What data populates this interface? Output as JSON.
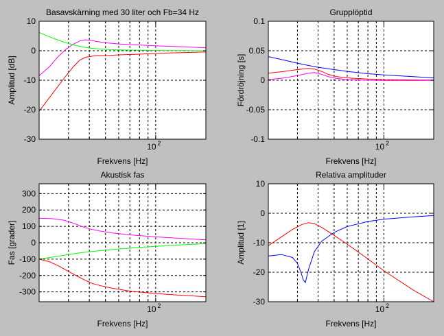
{
  "chart_data": [
    {
      "type": "line",
      "title": "Basavskärning med 30 liter och Fb=34 Hz",
      "xlabel": "Frekvens [Hz]",
      "ylabel": "Amplitud [dB]",
      "xscale": "log",
      "xlim": [
        20,
        200
      ],
      "ylim": [
        -30,
        10
      ],
      "yticks": [
        -30,
        -20,
        -10,
        0,
        10
      ],
      "xtick_label": "10",
      "xtick_exponent": "2",
      "grid": true,
      "series": [
        {
          "color": "#ff0000",
          "x": [
            20,
            23,
            26,
            29,
            32,
            35,
            38,
            42,
            46,
            52,
            60,
            75,
            100,
            150,
            200
          ],
          "y": [
            -20.5,
            -16,
            -12,
            -8.5,
            -5.5,
            -3.2,
            -2.2,
            -1.8,
            -1.7,
            -1.6,
            -1.4,
            -1.2,
            -0.9,
            -0.6,
            -0.4
          ]
        },
        {
          "color": "#ff00ff",
          "x": [
            20,
            23,
            26,
            29,
            32,
            35,
            38,
            42,
            46,
            52,
            60,
            75,
            100,
            150,
            200
          ],
          "y": [
            -8.5,
            -5.5,
            -2,
            0.5,
            2.2,
            3.3,
            3.7,
            3.4,
            3,
            2.6,
            2.3,
            2,
            1.7,
            1.3,
            1.0
          ]
        },
        {
          "color": "#00ff00",
          "x": [
            20,
            23,
            26,
            29,
            32,
            35,
            38,
            42,
            46,
            52,
            60,
            75,
            100,
            150,
            200
          ],
          "y": [
            6.2,
            4.8,
            3.6,
            2.7,
            2.0,
            1.5,
            1.1,
            0.8,
            0.6,
            0.4,
            0.3,
            0.2,
            0.1,
            0.05,
            0
          ]
        }
      ]
    },
    {
      "type": "line",
      "title": "Grupplöptid",
      "xlabel": "Frekvens [Hz]",
      "ylabel": "Fördröjning [s]",
      "xscale": "log",
      "xlim": [
        20,
        200
      ],
      "ylim": [
        -0.1,
        0.1
      ],
      "yticks": [
        -0.1,
        -0.05,
        0,
        0.05,
        0.1
      ],
      "ytick_labels": [
        "-0.1",
        "-0.05",
        "0",
        "0.05",
        "0.1"
      ],
      "xtick_label": "10",
      "xtick_exponent": "2",
      "grid": true,
      "series": [
        {
          "color": "#0000ff",
          "x": [
            20,
            25,
            30,
            35,
            40,
            50,
            60,
            80,
            100,
            150,
            200
          ],
          "y": [
            0.04,
            0.034,
            0.029,
            0.025,
            0.022,
            0.018,
            0.015,
            0.011,
            0.009,
            0.006,
            0.004
          ]
        },
        {
          "color": "#ff0000",
          "x": [
            20,
            25,
            30,
            35,
            38,
            42,
            46,
            52,
            60,
            80,
            100,
            150,
            200
          ],
          "y": [
            0.012,
            0.015,
            0.018,
            0.02,
            0.019,
            0.015,
            0.01,
            0.006,
            0.004,
            0.002,
            0.001,
            0.0005,
            0.0003
          ]
        },
        {
          "color": "#ff00ff",
          "x": [
            20,
            25,
            30,
            35,
            38,
            42,
            46,
            52,
            60,
            80,
            100,
            150,
            200
          ],
          "y": [
            0.001,
            0.004,
            0.008,
            0.012,
            0.013,
            0.01,
            0.006,
            0.003,
            0.001,
            0.0,
            -0.0005,
            -0.0005,
            -0.0003
          ]
        }
      ]
    },
    {
      "type": "line",
      "title": "Akustisk fas",
      "xlabel": "Frekvens [Hz]",
      "ylabel": "Fas [grader]",
      "xscale": "log",
      "xlim": [
        20,
        200
      ],
      "ylim": [
        -360,
        360
      ],
      "yticks": [
        -300,
        -200,
        -100,
        0,
        100,
        200,
        300
      ],
      "xtick_label": "10",
      "xtick_exponent": "2",
      "grid": true,
      "series": [
        {
          "color": "#ff00ff",
          "x": [
            20,
            24,
            28,
            32,
            36,
            40,
            46,
            55,
            70,
            100,
            150,
            200
          ],
          "y": [
            150,
            147,
            138,
            120,
            100,
            85,
            72,
            60,
            48,
            36,
            25,
            18
          ]
        },
        {
          "color": "#00ff00",
          "x": [
            20,
            25,
            30,
            35,
            40,
            50,
            60,
            80,
            100,
            150,
            200
          ],
          "y": [
            -100,
            -85,
            -72,
            -62,
            -55,
            -45,
            -38,
            -28,
            -22,
            -12,
            -5
          ]
        },
        {
          "color": "#ff0000",
          "x": [
            20,
            23,
            26,
            30,
            34,
            38,
            42,
            48,
            55,
            70,
            100,
            150,
            200
          ],
          "y": [
            -100,
            -115,
            -140,
            -175,
            -205,
            -230,
            -250,
            -265,
            -278,
            -295,
            -310,
            -322,
            -330
          ]
        }
      ]
    },
    {
      "type": "line",
      "title": "Relativa amplituder",
      "xlabel": "Frekvens [Hz]",
      "ylabel": "Amplitud [1]",
      "xscale": "log",
      "xlim": [
        20,
        200
      ],
      "ylim": [
        -30,
        10
      ],
      "yticks": [
        -30,
        -20,
        -10,
        0,
        10
      ],
      "xtick_label": "10",
      "xtick_exponent": "2",
      "grid": true,
      "series": [
        {
          "color": "#ff0000",
          "x": [
            20,
            24,
            28,
            32,
            35,
            38,
            42,
            50,
            60,
            80,
            100,
            150,
            200
          ],
          "y": [
            -11,
            -8,
            -5.5,
            -3.8,
            -3.2,
            -3.5,
            -4.8,
            -7.5,
            -10.5,
            -15.5,
            -19.5,
            -26,
            -30
          ]
        },
        {
          "color": "#0000ff",
          "x": [
            20,
            24,
            28,
            30,
            31.5,
            32.5,
            33.5,
            35,
            38,
            42,
            50,
            60,
            80,
            100,
            150,
            200
          ],
          "y": [
            -14.5,
            -14,
            -15,
            -17,
            -20,
            -22.5,
            -23.5,
            -19,
            -13,
            -9.5,
            -6.5,
            -4.5,
            -2.8,
            -2,
            -1.2,
            -0.8
          ]
        }
      ]
    }
  ]
}
